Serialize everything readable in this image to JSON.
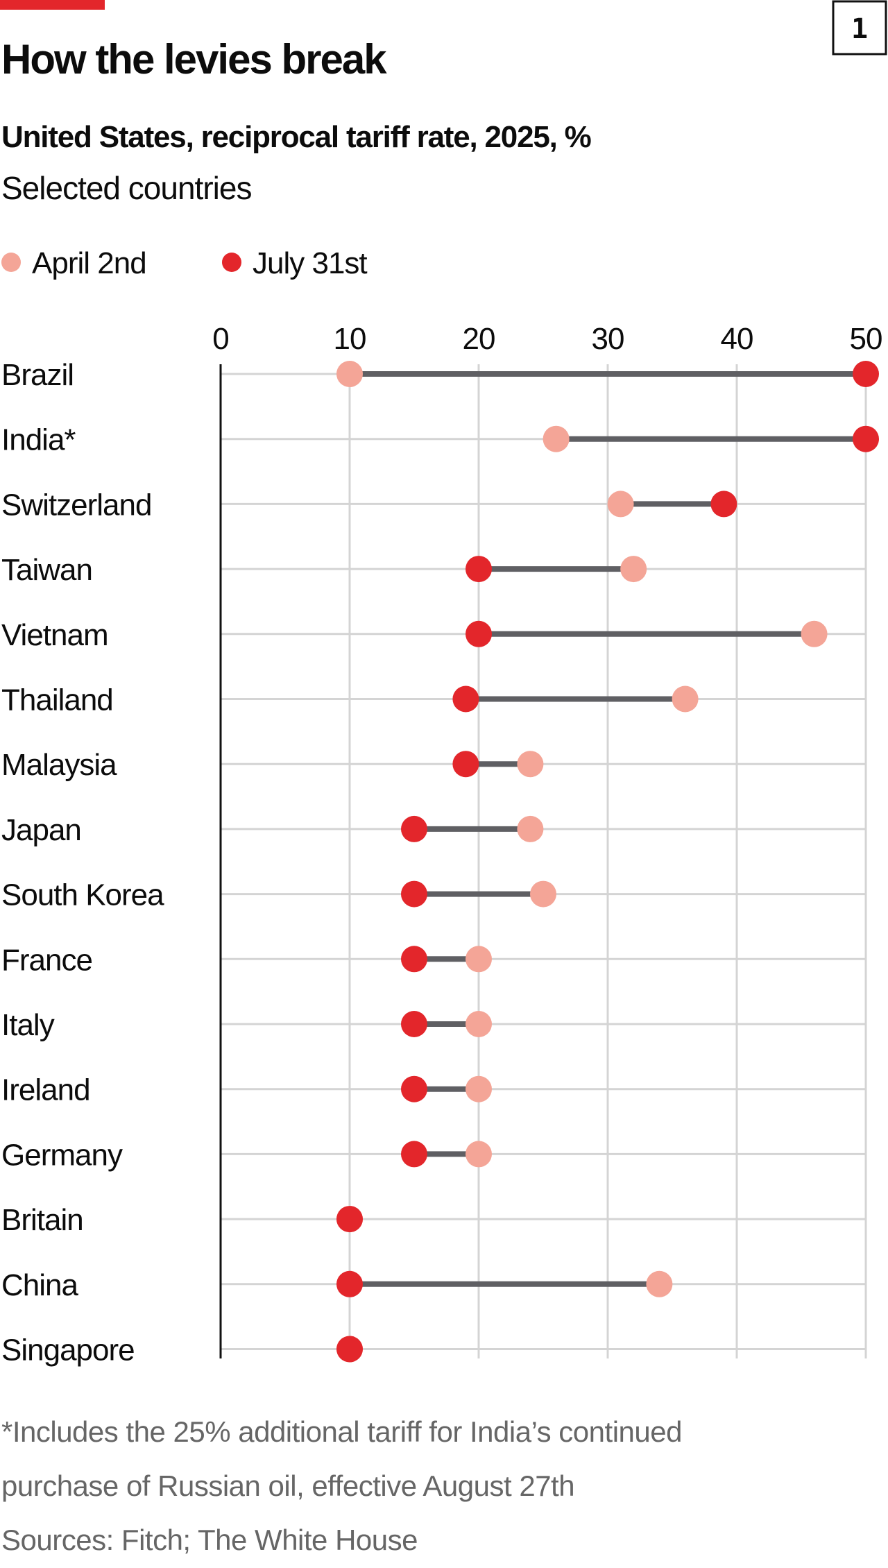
{
  "header": {
    "badge": "1",
    "title": "How the levies break",
    "subtitle": "United States, reciprocal tariff rate, 2025, %",
    "subtitle2": "Selected countries"
  },
  "colors": {
    "brand": "#e3262b",
    "april": "#f4a597",
    "july": "#e3262b",
    "connector": "#5f5f63",
    "grid": "#d4d4d4"
  },
  "chart_data": {
    "type": "dumbbell",
    "xlim": [
      0,
      50
    ],
    "xticks": [
      "0",
      "10",
      "20",
      "30",
      "40",
      "50"
    ],
    "grid": true,
    "legend_position": "top-left",
    "series": [
      {
        "name": "April 2nd"
      },
      {
        "name": "July 31st"
      }
    ],
    "categories": [
      "Brazil",
      "India*",
      "Switzerland",
      "Taiwan",
      "Vietnam",
      "Thailand",
      "Malaysia",
      "Japan",
      "South Korea",
      "France",
      "Italy",
      "Ireland",
      "Germany",
      "Britain",
      "China",
      "Singapore"
    ],
    "april": [
      10,
      26,
      31,
      32,
      46,
      36,
      24,
      24,
      25,
      20,
      20,
      20,
      20,
      10,
      34,
      10
    ],
    "july": [
      50,
      50,
      39,
      20,
      20,
      19,
      19,
      15,
      15,
      15,
      15,
      15,
      15,
      10,
      10,
      10
    ]
  },
  "footer": {
    "note1": "*Includes the 25% additional tariff for India’s continued",
    "note2": "purchase of Russian oil, effective August 27th",
    "sources": "Sources: Fitch; The White House"
  }
}
